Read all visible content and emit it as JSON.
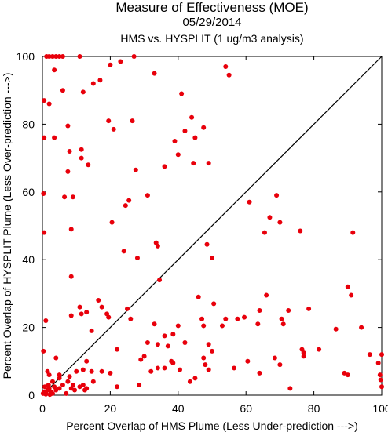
{
  "header": {
    "title": "Measure of Effectiveness (MOE)",
    "date": "05/29/2014",
    "subtitle": "HMS vs. HYSPLIT  (1 ug/m3 analysis)"
  },
  "chart_data": {
    "type": "scatter",
    "title": "Measure of Effectiveness (MOE)",
    "subtitle": "05/29/2014 — HMS vs. HYSPLIT  (1 ug/m3 analysis)",
    "xlabel": "Percent Overlap of HMS Plume (Less Under-prediction --->)",
    "ylabel": "Percent Overlap of HYSPLIT Plume (Less Over-prediction --->)",
    "xlim": [
      0,
      100
    ],
    "ylim": [
      0,
      100
    ],
    "xticks": [
      0,
      20,
      40,
      60,
      80,
      100
    ],
    "yticks": [
      0,
      20,
      40,
      60,
      80,
      100
    ],
    "reference_line": "1:1 diagonal",
    "point_color": "#e8000b",
    "line_color": "#000000",
    "points": [
      [
        1.2,
        100
      ],
      [
        2,
        100
      ],
      [
        3,
        100
      ],
      [
        4,
        100
      ],
      [
        5,
        100
      ],
      [
        6,
        100
      ],
      [
        11,
        100
      ],
      [
        27,
        100
      ],
      [
        0.5,
        87
      ],
      [
        2,
        86
      ],
      [
        3.5,
        96
      ],
      [
        6,
        90
      ],
      [
        12,
        89.5
      ],
      [
        15,
        92
      ],
      [
        17,
        93
      ],
      [
        20,
        97.5
      ],
      [
        23,
        98.5
      ],
      [
        33,
        95
      ],
      [
        54,
        97
      ],
      [
        55,
        94.5
      ],
      [
        0.5,
        76
      ],
      [
        3.5,
        76
      ],
      [
        7.5,
        79.5
      ],
      [
        8,
        72
      ],
      [
        11.5,
        72.5
      ],
      [
        7.5,
        66
      ],
      [
        11.5,
        70
      ],
      [
        13.5,
        68
      ],
      [
        19.5,
        81
      ],
      [
        21,
        78.5
      ],
      [
        26.5,
        81
      ],
      [
        27.5,
        66.5
      ],
      [
        36,
        67.5
      ],
      [
        41,
        89
      ],
      [
        44,
        82
      ],
      [
        42,
        78
      ],
      [
        45,
        76
      ],
      [
        39,
        75
      ],
      [
        40,
        71
      ],
      [
        44.5,
        68.5
      ],
      [
        47.5,
        79
      ],
      [
        49,
        68.5
      ],
      [
        0.3,
        59.5
      ],
      [
        6.5,
        58.5
      ],
      [
        9,
        58.5
      ],
      [
        24.5,
        56
      ],
      [
        25.5,
        57.5
      ],
      [
        31,
        59
      ],
      [
        20.5,
        51
      ],
      [
        8.5,
        49
      ],
      [
        0.5,
        48
      ],
      [
        24,
        42.5
      ],
      [
        28,
        40.5
      ],
      [
        33.5,
        45
      ],
      [
        34,
        44
      ],
      [
        34.5,
        34
      ],
      [
        48.5,
        44.5
      ],
      [
        50,
        40.5
      ],
      [
        61,
        57
      ],
      [
        65.5,
        48
      ],
      [
        67,
        52.5
      ],
      [
        69,
        59
      ],
      [
        70,
        51
      ],
      [
        76,
        48.5
      ],
      [
        91.5,
        48
      ],
      [
        8.5,
        35
      ],
      [
        8.5,
        23.5
      ],
      [
        11,
        26
      ],
      [
        11.5,
        24
      ],
      [
        13,
        24.5
      ],
      [
        14.5,
        19
      ],
      [
        16.5,
        28
      ],
      [
        17.5,
        26
      ],
      [
        19,
        24
      ],
      [
        19.5,
        23
      ],
      [
        25,
        25.5
      ],
      [
        26,
        22.5
      ],
      [
        40,
        20.5
      ],
      [
        38.5,
        18
      ],
      [
        36,
        17.5
      ],
      [
        33,
        21
      ],
      [
        31,
        15.5
      ],
      [
        30,
        11.5
      ],
      [
        34,
        15
      ],
      [
        37,
        14.5
      ],
      [
        42,
        15.5
      ],
      [
        46,
        29
      ],
      [
        47,
        22.5
      ],
      [
        47.5,
        20.5
      ],
      [
        49,
        15
      ],
      [
        50,
        13
      ],
      [
        50.5,
        27
      ],
      [
        53,
        20.5
      ],
      [
        54,
        22.5
      ],
      [
        57.5,
        22.5
      ],
      [
        59.5,
        23
      ],
      [
        63.5,
        21
      ],
      [
        64,
        25
      ],
      [
        66,
        29.5
      ],
      [
        70.5,
        22.5
      ],
      [
        71,
        21
      ],
      [
        72.5,
        25
      ],
      [
        76.5,
        13.5
      ],
      [
        77,
        11.5
      ],
      [
        78.5,
        25.5
      ],
      [
        81.5,
        13.5
      ],
      [
        86.5,
        19.5
      ],
      [
        90,
        32
      ],
      [
        91,
        29.5
      ],
      [
        94,
        20
      ],
      [
        1,
        22
      ],
      [
        0.3,
        13
      ],
      [
        1.5,
        7
      ],
      [
        2,
        6
      ],
      [
        3,
        4
      ],
      [
        4,
        11
      ],
      [
        5,
        5
      ],
      [
        5,
        6
      ],
      [
        8,
        5.5
      ],
      [
        10,
        7
      ],
      [
        12,
        7.5
      ],
      [
        13,
        10
      ],
      [
        14.5,
        7
      ],
      [
        15,
        4
      ],
      [
        17.5,
        7
      ],
      [
        20,
        6.5
      ],
      [
        22,
        2.5
      ],
      [
        22,
        13.5
      ],
      [
        28.5,
        3
      ],
      [
        29,
        10.5
      ],
      [
        32,
        7
      ],
      [
        34,
        8
      ],
      [
        36,
        8
      ],
      [
        38,
        10
      ],
      [
        38.5,
        9.5
      ],
      [
        40.5,
        7.5
      ],
      [
        43.5,
        4
      ],
      [
        45,
        5
      ],
      [
        47.5,
        11
      ],
      [
        48,
        9
      ],
      [
        49,
        7.5
      ],
      [
        56.5,
        8
      ],
      [
        60.5,
        10
      ],
      [
        64,
        6.5
      ],
      [
        68.5,
        11
      ],
      [
        70,
        9
      ],
      [
        73,
        2
      ],
      [
        77,
        12.5
      ],
      [
        89,
        6.5
      ],
      [
        90,
        6
      ],
      [
        96.5,
        12
      ],
      [
        99,
        9.5
      ],
      [
        99.5,
        6
      ],
      [
        99.7,
        4.5
      ],
      [
        100,
        12
      ],
      [
        100,
        2.5
      ],
      [
        0.2,
        0.5
      ],
      [
        0.5,
        1
      ],
      [
        1,
        0.8
      ],
      [
        1.5,
        1.5
      ],
      [
        2,
        2
      ],
      [
        2.5,
        1
      ],
      [
        3,
        0.5
      ],
      [
        3.5,
        2.5
      ],
      [
        4,
        1.5
      ],
      [
        5,
        2
      ],
      [
        6,
        3
      ],
      [
        7,
        0.5
      ],
      [
        7.5,
        4
      ],
      [
        8.5,
        2
      ],
      [
        9,
        3
      ],
      [
        9.5,
        1.5
      ],
      [
        11,
        2.5
      ],
      [
        12,
        3
      ],
      [
        12.5,
        1.5
      ],
      [
        13,
        2
      ],
      [
        1,
        0.3
      ],
      [
        0.7,
        2.5
      ],
      [
        1.8,
        3
      ],
      [
        2.2,
        0.2
      ]
    ]
  }
}
